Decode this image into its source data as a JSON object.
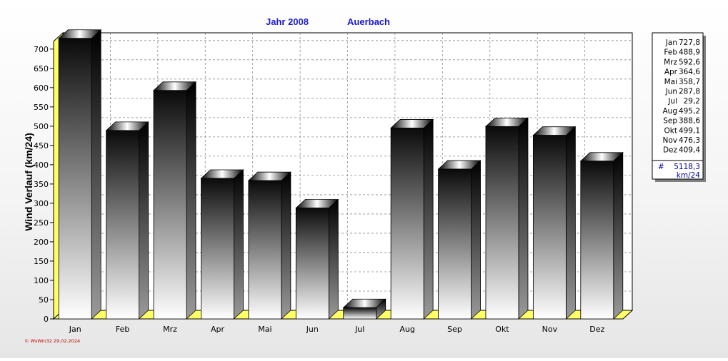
{
  "chart_data": {
    "type": "bar",
    "title": "Jahr  2008",
    "subtitle": "Auerbach",
    "ylabel": "Wind Verlauf  (km/24)",
    "xlabel": "",
    "categories": [
      "Jan",
      "Feb",
      "Mrz",
      "Apr",
      "Mai",
      "Jun",
      "Jul",
      "Aug",
      "Sep",
      "Okt",
      "Nov",
      "Dez"
    ],
    "values": [
      727.8,
      488.9,
      592.6,
      364.6,
      358.7,
      287.8,
      29.2,
      495.2,
      388.6,
      499.1,
      476.3,
      409.4
    ],
    "value_labels": [
      "727,8",
      "488,9",
      "592,6",
      "364,6",
      "358,7",
      "287,8",
      "29,2",
      "495,2",
      "388,6",
      "499,1",
      "476,3",
      "409,4"
    ],
    "ylim": [
      0,
      720
    ],
    "yticks": [
      0,
      50,
      100,
      150,
      200,
      250,
      300,
      350,
      400,
      450,
      500,
      550,
      600,
      650,
      700
    ],
    "grid": true,
    "legend_placement": "right",
    "legend_total_label": "#",
    "legend_total_value": "5118,3",
    "legend_total_unit": "km/24",
    "credit": "© WsWin32  29.02.2024",
    "colors": {
      "title": "#1a1ad0",
      "bar_top": "#0a0a0a",
      "bar_bottom": "#ffffff",
      "floor": "#ffff66",
      "grid": "#8a8a8a",
      "credit": "#c00000",
      "legend_total": "#0000a0"
    }
  }
}
